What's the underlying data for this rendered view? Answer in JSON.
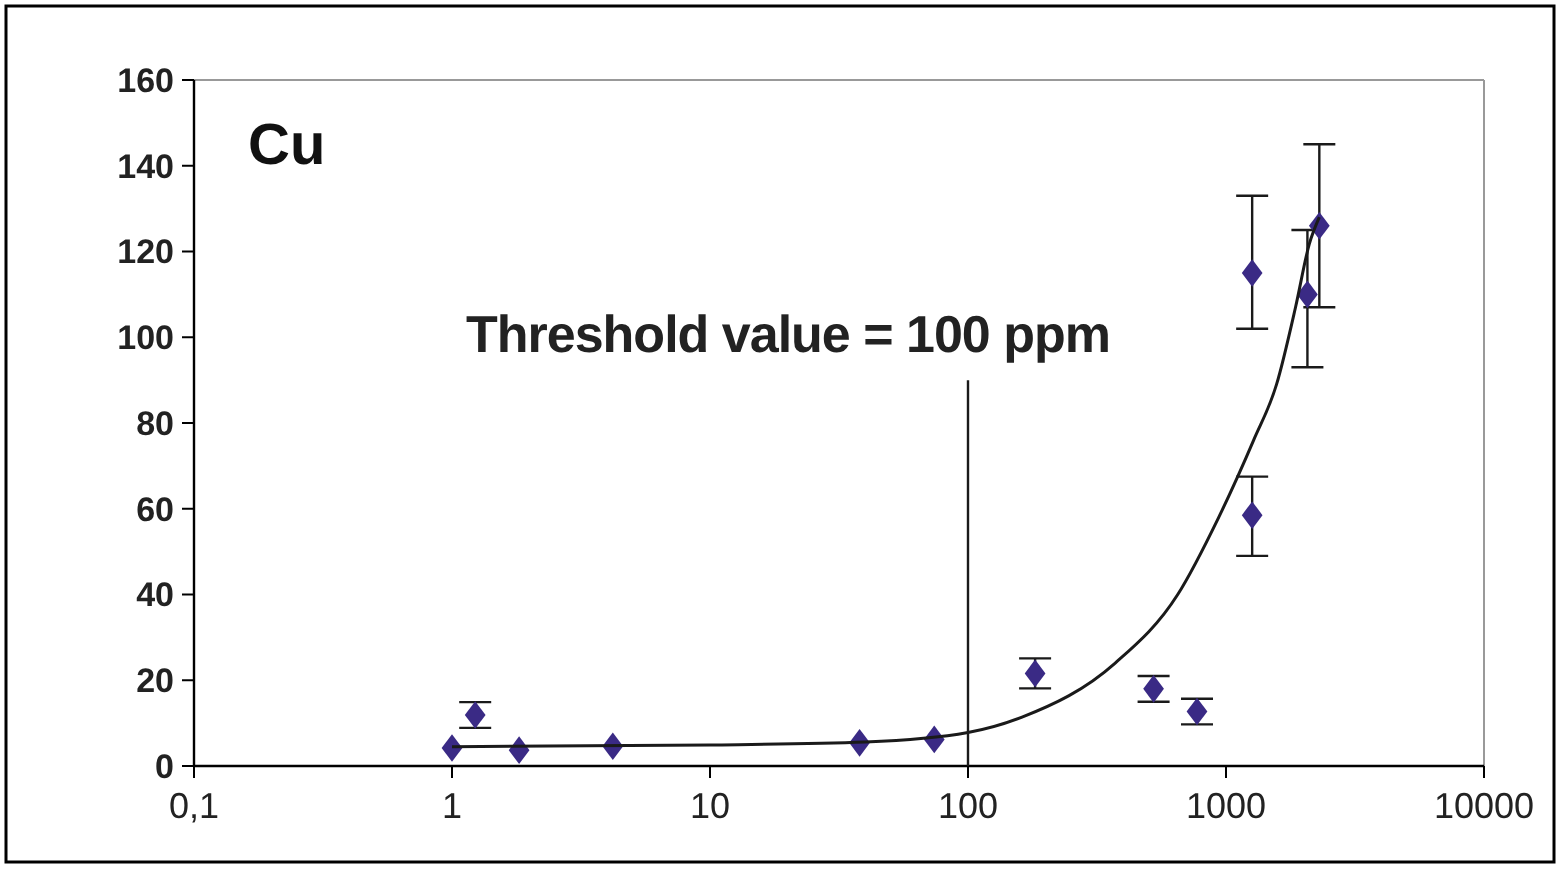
{
  "chart_data": {
    "type": "scatter",
    "log": "x",
    "marker": "diamond",
    "grid": false,
    "xlim": [
      0.1,
      10000
    ],
    "xticks": [
      {
        "value": 0.1,
        "label": "0,1"
      },
      1,
      10,
      100,
      1000,
      10000
    ],
    "ylim": [
      0,
      160
    ],
    "yticks": [
      0,
      20,
      40,
      60,
      80,
      100,
      120,
      140,
      160
    ],
    "annotations": [
      "Cu"
    ],
    "ref_lines": [
      {
        "axis": "x",
        "value": 100,
        "label": "Threshold value = 100 ppm",
        "color": "#1a1a1a"
      }
    ],
    "series": [
      {
        "color": "#3a2a85",
        "x": [
          1,
          1.23,
          1.82,
          4.2,
          38,
          74,
          182,
          524,
          772,
          1263,
          1263,
          2068,
          2300
        ],
        "values": [
          4.2,
          11.9,
          3.7,
          4.6,
          5.4,
          6.2,
          21.6,
          18,
          12.7,
          58.5,
          115,
          110,
          126
        ],
        "errors": [
          null,
          3,
          null,
          null,
          null,
          null,
          3.5,
          3,
          3,
          [
            49,
            67.5
          ],
          [
            102,
            133
          ],
          [
            93,
            125
          ],
          [
            107,
            145
          ]
        ]
      },
      {
        "type": "line",
        "color": "#1a1a1a",
        "marker": "none",
        "x": [
          1,
          10,
          40,
          100,
          162,
          372,
          650,
          937,
          1280,
          1570,
          1860,
          2100,
          2300
        ],
        "values": [
          4.5,
          4.9,
          5.6,
          7.8,
          11.4,
          24,
          40,
          58,
          76,
          89,
          107,
          121.6,
          128
        ]
      }
    ]
  }
}
